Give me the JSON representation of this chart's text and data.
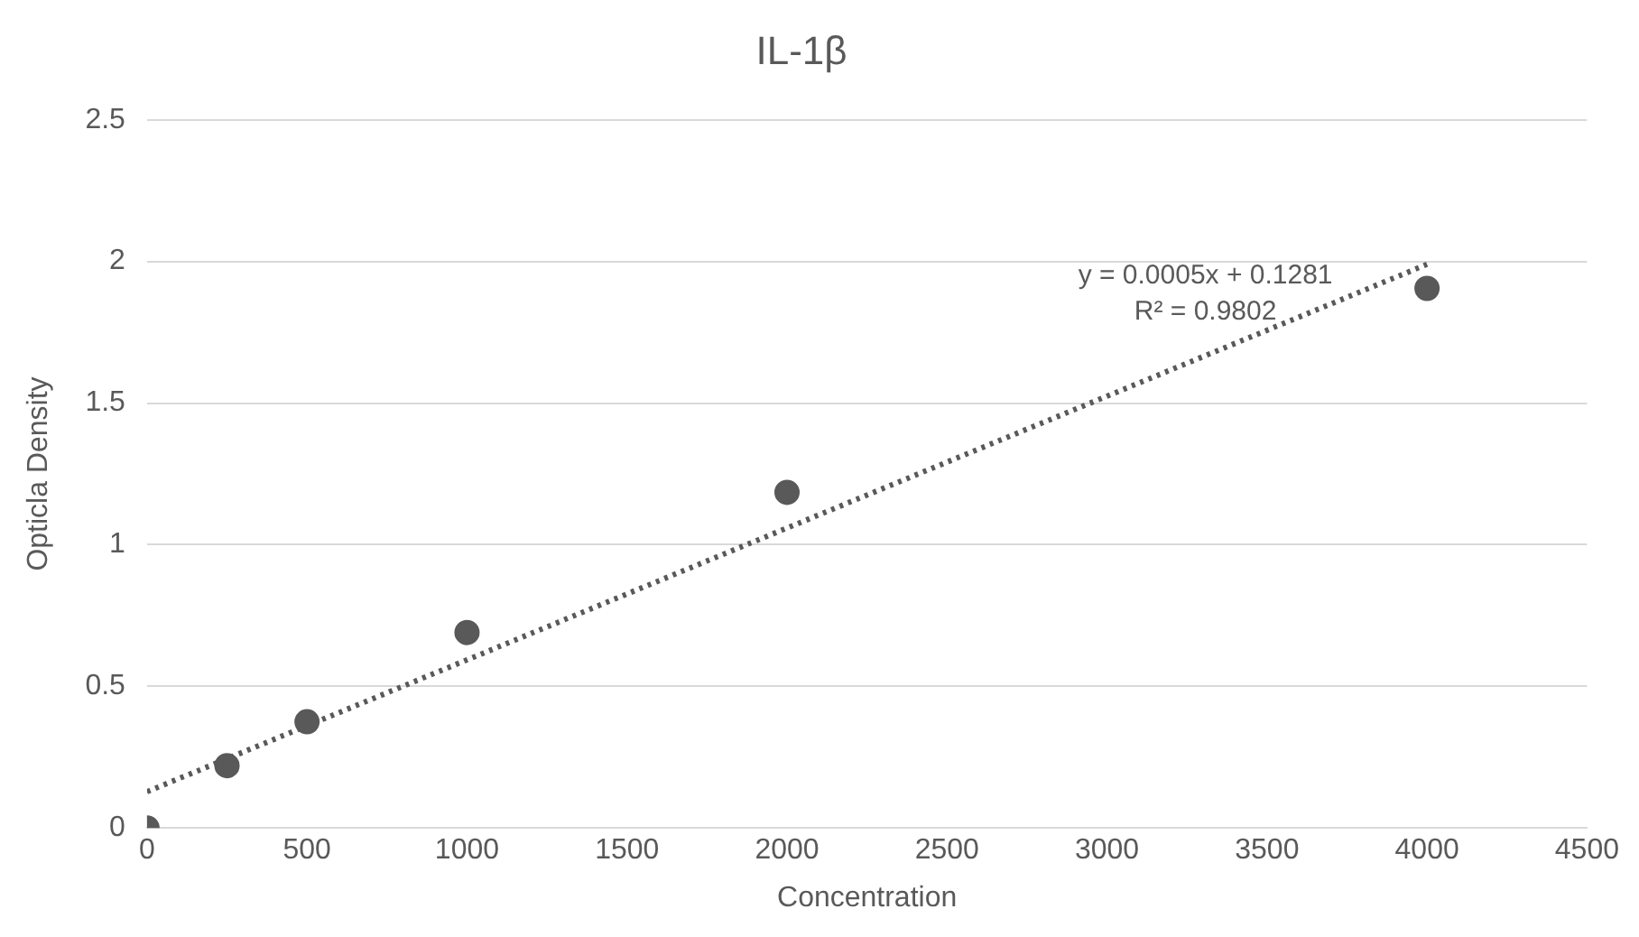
{
  "chart_data": {
    "type": "scatter",
    "title": "IL-1β",
    "xlabel": "Concentration",
    "ylabel": "Opticla Density",
    "x": [
      0,
      250,
      500,
      1000,
      2000,
      4000
    ],
    "series": [
      {
        "type": "scatter",
        "color": "#595959",
        "marker": "circle",
        "values": [
          0,
          0.22,
          0.375,
          0.69,
          1.185,
          1.905
        ]
      },
      {
        "type": "line",
        "color": "#595959",
        "marker": "none",
        "line_style": "dotted",
        "x": [
          0,
          4000
        ],
        "values": [
          0.128,
          1.99
        ]
      }
    ],
    "xlim": [
      0,
      4500
    ],
    "xticks": [
      0,
      500,
      1000,
      1500,
      2000,
      2500,
      3000,
      3500,
      4000,
      4500
    ],
    "ylim": [
      0,
      2.5
    ],
    "yticks": [
      0,
      0.5,
      1,
      1.5,
      2,
      2.5
    ],
    "grid": "y",
    "legend": false,
    "annotations": [
      "y = 0.0005x + 0.1281",
      "R² = 0.9802"
    ]
  }
}
